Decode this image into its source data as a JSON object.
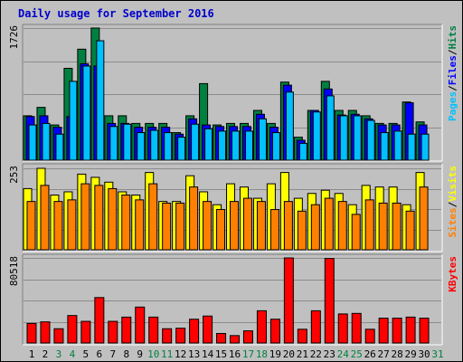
{
  "title": "Daily usage for September 2016",
  "colors": {
    "background": "#c0c0c0",
    "title": "#0000cc",
    "hits": "#008040",
    "files": "#0000ff",
    "pages": "#00c0ff",
    "visits": "#ffff00",
    "sites": "#ff8000",
    "kbytes": "#ff0000",
    "grid": "#8c8c8c",
    "day_weekday": "#000000",
    "day_weekend": "#008040",
    "label_separator": "#000000"
  },
  "chart_data": [
    {
      "type": "bar",
      "name": "Hits / Files / Pages",
      "ylabel_max": "1726",
      "ylim": [
        0,
        1726
      ],
      "legend": [
        "Pages",
        "Files",
        "Hits"
      ],
      "grid": true,
      "categories": [
        "1",
        "2",
        "3",
        "4",
        "5",
        "6",
        "7",
        "8",
        "9",
        "10",
        "11",
        "12",
        "13",
        "14",
        "15",
        "16",
        "17",
        "18",
        "19",
        "20",
        "21",
        "22",
        "23",
        "24",
        "25",
        "26",
        "27",
        "28",
        "29",
        "30",
        "31"
      ],
      "weekend_days": [
        "3",
        "4",
        "10",
        "11",
        "17",
        "18",
        "24",
        "25",
        "31"
      ],
      "series": [
        {
          "name": "Hits",
          "values": [
            580,
            690,
            460,
            1200,
            1450,
            1726,
            580,
            580,
            480,
            480,
            480,
            360,
            580,
            1000,
            460,
            480,
            480,
            650,
            480,
            1020,
            300,
            650,
            1030,
            650,
            650,
            580,
            480,
            480,
            760,
            500,
            0
          ]
        },
        {
          "name": "Files",
          "values": [
            570,
            580,
            430,
            570,
            1260,
            1230,
            480,
            480,
            430,
            430,
            430,
            340,
            540,
            460,
            440,
            440,
            440,
            600,
            430,
            980,
            260,
            650,
            930,
            590,
            600,
            540,
            460,
            460,
            750,
            460,
            0
          ]
        },
        {
          "name": "Pages",
          "values": [
            460,
            480,
            340,
            1030,
            1230,
            1560,
            440,
            470,
            360,
            390,
            360,
            300,
            470,
            410,
            380,
            380,
            380,
            540,
            360,
            890,
            220,
            630,
            840,
            580,
            580,
            520,
            360,
            380,
            340,
            340,
            0
          ]
        }
      ]
    },
    {
      "type": "bar",
      "name": "Visits / Sites",
      "ylabel_max": "253",
      "ylim": [
        0,
        253
      ],
      "legend": [
        "Sites",
        "Visits"
      ],
      "grid": true,
      "categories": [
        "1",
        "2",
        "3",
        "4",
        "5",
        "6",
        "7",
        "8",
        "9",
        "10",
        "11",
        "12",
        "13",
        "14",
        "15",
        "16",
        "17",
        "18",
        "19",
        "20",
        "21",
        "22",
        "23",
        "24",
        "25",
        "26",
        "27",
        "28",
        "29",
        "30",
        "31"
      ],
      "series": [
        {
          "name": "Visits",
          "values": [
            190,
            253,
            170,
            180,
            235,
            225,
            210,
            180,
            170,
            240,
            150,
            150,
            230,
            180,
            140,
            205,
            195,
            160,
            205,
            240,
            160,
            175,
            185,
            175,
            140,
            200,
            195,
            195,
            140,
            240,
            0
          ]
        },
        {
          "name": "Sites",
          "values": [
            150,
            200,
            150,
            155,
            205,
            200,
            190,
            170,
            155,
            205,
            145,
            145,
            195,
            150,
            125,
            150,
            160,
            150,
            125,
            150,
            120,
            140,
            160,
            150,
            110,
            155,
            145,
            145,
            120,
            195,
            0
          ]
        }
      ]
    },
    {
      "type": "bar",
      "name": "KBytes",
      "ylabel_max": "80518",
      "ylim": [
        0,
        80518
      ],
      "legend": [
        "KBytes"
      ],
      "grid": true,
      "categories": [
        "1",
        "2",
        "3",
        "4",
        "5",
        "6",
        "7",
        "8",
        "9",
        "10",
        "11",
        "12",
        "13",
        "14",
        "15",
        "16",
        "17",
        "18",
        "19",
        "20",
        "21",
        "22",
        "23",
        "24",
        "25",
        "26",
        "27",
        "28",
        "29",
        "30",
        "31"
      ],
      "series": [
        {
          "name": "KBytes",
          "values": [
            18500,
            20000,
            13500,
            26000,
            20500,
            43000,
            20500,
            24500,
            34000,
            24500,
            13500,
            14000,
            22500,
            25500,
            9000,
            7000,
            11500,
            30500,
            22500,
            80518,
            13000,
            30500,
            80000,
            27500,
            28000,
            13000,
            23500,
            23500,
            24500,
            23500,
            0
          ]
        }
      ]
    }
  ]
}
